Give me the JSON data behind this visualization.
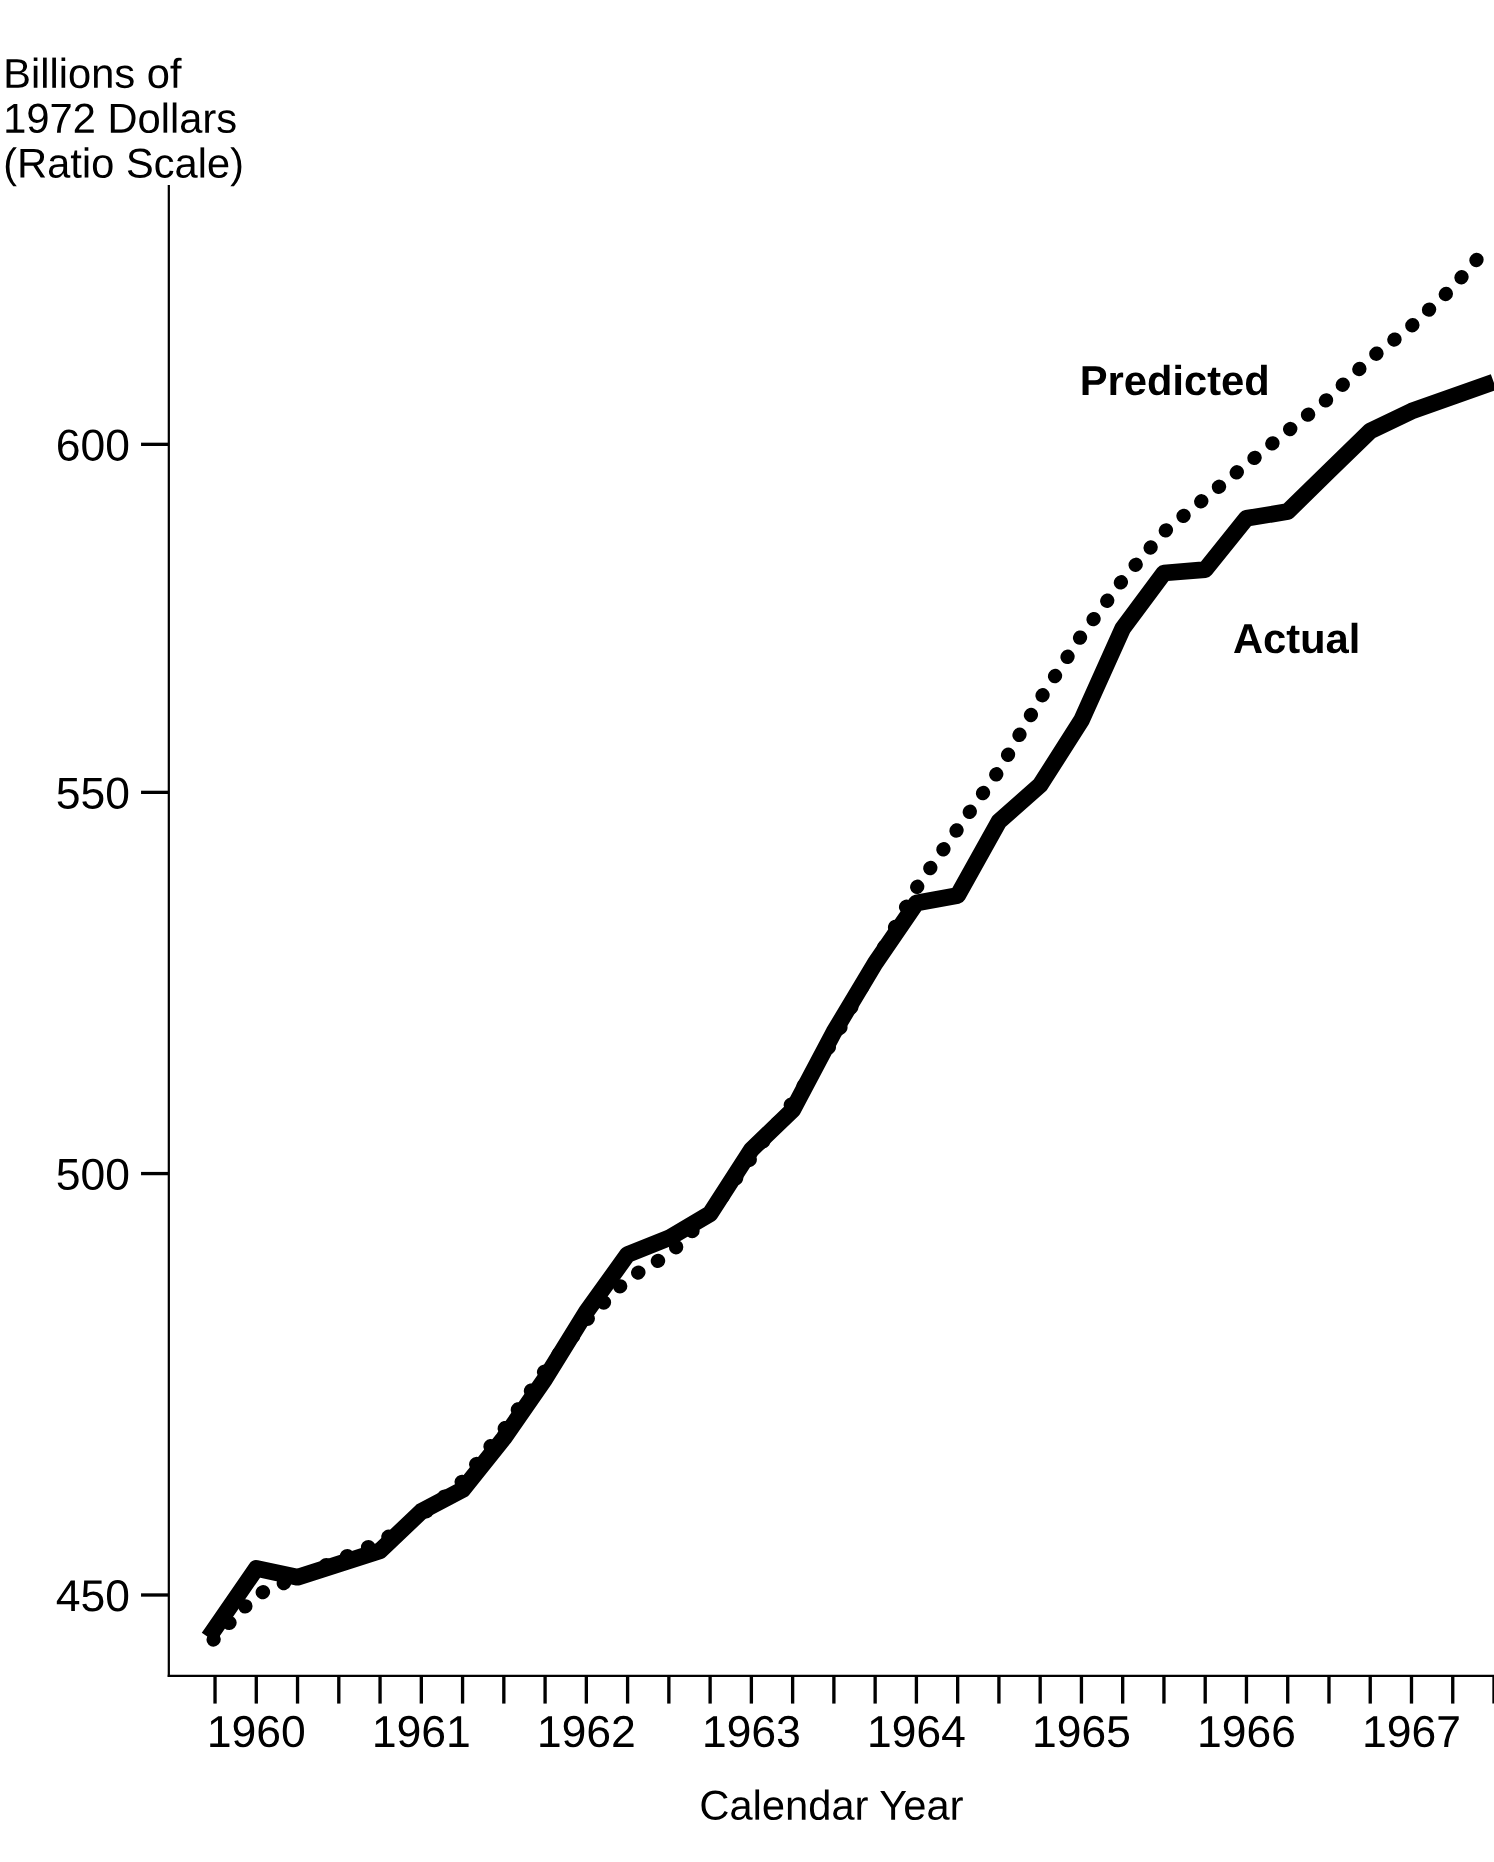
{
  "chart_data": {
    "type": "line",
    "ylabel": "Billions of\n1972 Dollars\n(Ratio Scale)",
    "xlabel": "Calendar Year",
    "log": true,
    "ylim": [
      441,
      640
    ],
    "yticks": [
      450,
      500,
      550,
      600
    ],
    "xlim": [
      1959.97,
      1968
    ],
    "xticks": [
      {
        "value": 1960.25,
        "label": null
      },
      {
        "value": 1960.5,
        "label": "1960"
      },
      {
        "value": 1960.75,
        "label": null
      },
      {
        "value": 1961,
        "label": null
      },
      {
        "value": 1961.25,
        "label": null
      },
      {
        "value": 1961.5,
        "label": "1961"
      },
      {
        "value": 1961.75,
        "label": null
      },
      {
        "value": 1962,
        "label": null
      },
      {
        "value": 1962.25,
        "label": null
      },
      {
        "value": 1962.5,
        "label": "1962"
      },
      {
        "value": 1962.75,
        "label": null
      },
      {
        "value": 1963,
        "label": null
      },
      {
        "value": 1963.25,
        "label": null
      },
      {
        "value": 1963.5,
        "label": "1963"
      },
      {
        "value": 1963.75,
        "label": null
      },
      {
        "value": 1964,
        "label": null
      },
      {
        "value": 1964.25,
        "label": null
      },
      {
        "value": 1964.5,
        "label": "1964"
      },
      {
        "value": 1964.75,
        "label": null
      },
      {
        "value": 1965,
        "label": null
      },
      {
        "value": 1965.25,
        "label": null
      },
      {
        "value": 1965.5,
        "label": "1965"
      },
      {
        "value": 1965.75,
        "label": null
      },
      {
        "value": 1966,
        "label": null
      },
      {
        "value": 1966.25,
        "label": null
      },
      {
        "value": 1966.5,
        "label": "1966"
      },
      {
        "value": 1966.75,
        "label": null
      },
      {
        "value": 1967,
        "label": null
      },
      {
        "value": 1967.25,
        "label": null
      },
      {
        "value": 1967.5,
        "label": "1967"
      },
      {
        "value": 1967.75,
        "label": null
      },
      {
        "value": 1968,
        "label": null
      }
    ],
    "grid": false,
    "legend": false,
    "series": [
      {
        "name": "Predicted",
        "color": "#000000",
        "line_style": "dotted",
        "x": [
          1960.24,
          1960.5,
          1960.75,
          1961.0,
          1961.25,
          1961.5,
          1961.75,
          1962.0,
          1962.25,
          1962.5,
          1962.75,
          1963.0,
          1963.25,
          1963.5,
          1963.75,
          1964.0,
          1964.25,
          1964.5,
          1964.75,
          1965.0,
          1965.25,
          1965.5,
          1965.75,
          1966.0,
          1966.25,
          1966.5,
          1966.75,
          1967.0,
          1967.25,
          1967.5,
          1967.75,
          1967.95
        ],
        "values": [
          445,
          450,
          452,
          454,
          456,
          459,
          463,
          469,
          476,
          482,
          487,
          490,
          495,
          502,
          509,
          517,
          527,
          537,
          545,
          553,
          563,
          572,
          580,
          587,
          592,
          597,
          602,
          607,
          613,
          618,
          624,
          630
        ]
      },
      {
        "name": "Actual",
        "color": "#000000",
        "line_style": "solid",
        "x": [
          1960.24,
          1960.5,
          1960.75,
          1961.25,
          1961.5,
          1961.75,
          1962.0,
          1962.25,
          1962.5,
          1962.75,
          1963.0,
          1963.25,
          1963.5,
          1963.75,
          1964.0,
          1964.25,
          1964.5,
          1964.75,
          1965.0,
          1965.25,
          1965.5,
          1965.75,
          1966.0,
          1966.25,
          1966.5,
          1966.75,
          1967.0,
          1967.25,
          1967.5,
          1967.95
        ],
        "values": [
          446,
          453,
          452,
          455,
          459.5,
          462,
          468,
          475,
          483,
          490,
          492,
          495,
          503,
          508,
          518,
          527,
          535,
          536,
          546,
          551,
          560,
          573,
          581,
          581.5,
          589,
          590,
          596,
          602,
          605,
          609
        ]
      }
    ]
  }
}
